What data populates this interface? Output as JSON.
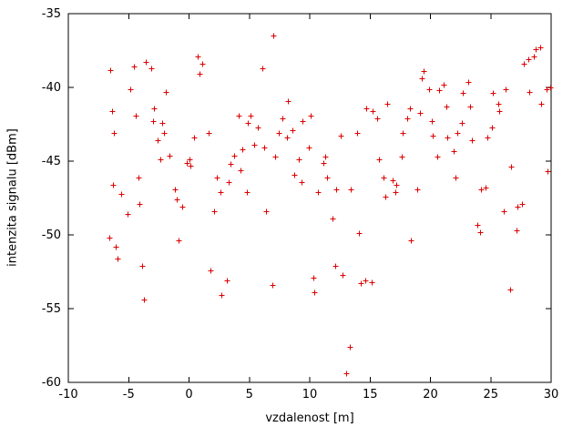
{
  "chart_data": {
    "type": "scatter",
    "title": "",
    "xlabel": "vzdalenost [m]",
    "ylabel": "intenzita signalu [dBm]",
    "xlim": [
      -10,
      30
    ],
    "ylim": [
      -60,
      -35
    ],
    "xticks": [
      -10,
      -5,
      0,
      5,
      10,
      15,
      20,
      25,
      30
    ],
    "yticks": [
      -60,
      -55,
      -50,
      -45,
      -40,
      -35
    ],
    "grid": false,
    "legend": "none",
    "marker": "plus",
    "marker_color": "#dd0000",
    "border_color": "#000000",
    "points": [
      [
        -6.6,
        -50.2
      ],
      [
        -6.5,
        -38.8
      ],
      [
        -6.4,
        -41.6
      ],
      [
        -6.2,
        -43.1
      ],
      [
        -6.3,
        -46.6
      ],
      [
        -6.1,
        -50.8
      ],
      [
        -5.9,
        -51.6
      ],
      [
        -5.6,
        -47.2
      ],
      [
        -5.1,
        -48.6
      ],
      [
        -4.9,
        -40.1
      ],
      [
        -4.6,
        -38.6
      ],
      [
        -4.4,
        -41.9
      ],
      [
        -4.2,
        -46.1
      ],
      [
        -4.1,
        -47.9
      ],
      [
        -3.9,
        -52.1
      ],
      [
        -3.7,
        -54.4
      ],
      [
        -3.6,
        -38.3
      ],
      [
        -3.1,
        -38.7
      ],
      [
        -3.0,
        -42.3
      ],
      [
        -2.9,
        -41.4
      ],
      [
        -2.6,
        -43.6
      ],
      [
        -2.4,
        -44.9
      ],
      [
        -2.2,
        -42.4
      ],
      [
        -2.1,
        -43.1
      ],
      [
        -1.9,
        -40.3
      ],
      [
        -1.6,
        -44.6
      ],
      [
        -1.2,
        -46.9
      ],
      [
        -1.0,
        -47.6
      ],
      [
        -0.9,
        -50.4
      ],
      [
        -0.6,
        -48.1
      ],
      [
        -0.2,
        -45.1
      ],
      [
        0.0,
        -44.9
      ],
      [
        0.1,
        -45.3
      ],
      [
        0.4,
        -43.4
      ],
      [
        0.7,
        -37.9
      ],
      [
        0.9,
        -39.1
      ],
      [
        1.1,
        -38.4
      ],
      [
        1.6,
        -43.1
      ],
      [
        1.8,
        -52.4
      ],
      [
        2.1,
        -48.4
      ],
      [
        2.3,
        -46.1
      ],
      [
        2.6,
        -47.1
      ],
      [
        2.7,
        -54.1
      ],
      [
        3.1,
        -53.1
      ],
      [
        3.3,
        -46.4
      ],
      [
        3.4,
        -45.2
      ],
      [
        3.7,
        -44.6
      ],
      [
        4.1,
        -41.9
      ],
      [
        4.3,
        -45.6
      ],
      [
        4.4,
        -44.2
      ],
      [
        4.8,
        -47.1
      ],
      [
        4.9,
        -42.4
      ],
      [
        5.1,
        -41.9
      ],
      [
        5.4,
        -43.9
      ],
      [
        5.7,
        -42.7
      ],
      [
        6.1,
        -38.7
      ],
      [
        6.2,
        -44.1
      ],
      [
        6.4,
        -48.4
      ],
      [
        6.9,
        -53.4
      ],
      [
        7.0,
        -36.5
      ],
      [
        7.1,
        -44.7
      ],
      [
        7.4,
        -43.1
      ],
      [
        7.7,
        -42.1
      ],
      [
        8.1,
        -43.4
      ],
      [
        8.2,
        -40.9
      ],
      [
        8.6,
        -42.9
      ],
      [
        8.7,
        -45.9
      ],
      [
        9.1,
        -44.9
      ],
      [
        9.3,
        -46.4
      ],
      [
        9.4,
        -42.3
      ],
      [
        9.9,
        -44.1
      ],
      [
        10.1,
        -41.9
      ],
      [
        10.3,
        -52.9
      ],
      [
        10.4,
        -53.9
      ],
      [
        10.7,
        -47.1
      ],
      [
        11.1,
        -45.1
      ],
      [
        11.3,
        -44.7
      ],
      [
        11.4,
        -46.1
      ],
      [
        11.9,
        -48.9
      ],
      [
        12.1,
        -52.1
      ],
      [
        12.2,
        -46.9
      ],
      [
        12.6,
        -43.3
      ],
      [
        12.7,
        -52.7
      ],
      [
        13.0,
        -59.4
      ],
      [
        13.3,
        -57.6
      ],
      [
        13.4,
        -46.9
      ],
      [
        13.9,
        -43.1
      ],
      [
        14.1,
        -49.9
      ],
      [
        14.2,
        -53.3
      ],
      [
        14.6,
        -53.1
      ],
      [
        14.7,
        -41.4
      ],
      [
        15.1,
        -53.2
      ],
      [
        15.2,
        -41.6
      ],
      [
        15.6,
        -42.1
      ],
      [
        15.7,
        -44.9
      ],
      [
        16.1,
        -46.1
      ],
      [
        16.3,
        -47.4
      ],
      [
        16.4,
        -41.1
      ],
      [
        16.9,
        -46.3
      ],
      [
        17.1,
        -47.1
      ],
      [
        17.2,
        -46.6
      ],
      [
        17.6,
        -44.7
      ],
      [
        17.7,
        -43.1
      ],
      [
        18.1,
        -42.1
      ],
      [
        18.3,
        -41.4
      ],
      [
        18.4,
        -50.4
      ],
      [
        18.9,
        -46.9
      ],
      [
        19.1,
        -41.7
      ],
      [
        19.3,
        -39.4
      ],
      [
        19.4,
        -38.9
      ],
      [
        19.9,
        -40.1
      ],
      [
        20.1,
        -42.3
      ],
      [
        20.2,
        -43.3
      ],
      [
        20.6,
        -44.7
      ],
      [
        20.7,
        -40.2
      ],
      [
        21.1,
        -39.8
      ],
      [
        21.3,
        -41.3
      ],
      [
        21.4,
        -43.4
      ],
      [
        21.9,
        -44.3
      ],
      [
        22.1,
        -46.1
      ],
      [
        22.2,
        -43.1
      ],
      [
        22.6,
        -42.4
      ],
      [
        22.7,
        -40.4
      ],
      [
        23.1,
        -39.6
      ],
      [
        23.3,
        -41.3
      ],
      [
        23.4,
        -43.6
      ],
      [
        23.9,
        -49.3
      ],
      [
        24.1,
        -49.8
      ],
      [
        24.2,
        -46.9
      ],
      [
        24.6,
        -46.8
      ],
      [
        24.7,
        -43.4
      ],
      [
        25.1,
        -42.7
      ],
      [
        25.2,
        -40.4
      ],
      [
        25.6,
        -41.1
      ],
      [
        25.7,
        -41.6
      ],
      [
        26.1,
        -48.4
      ],
      [
        26.2,
        -40.1
      ],
      [
        26.6,
        -53.7
      ],
      [
        26.7,
        -45.4
      ],
      [
        27.1,
        -49.7
      ],
      [
        27.2,
        -48.1
      ],
      [
        27.6,
        -47.9
      ],
      [
        27.7,
        -38.4
      ],
      [
        28.1,
        -38.1
      ],
      [
        28.2,
        -40.3
      ],
      [
        28.6,
        -37.9
      ],
      [
        28.7,
        -37.4
      ],
      [
        29.1,
        -37.3
      ],
      [
        29.2,
        -41.1
      ],
      [
        29.6,
        -40.1
      ],
      [
        29.7,
        -45.7
      ],
      [
        29.9,
        -40.0
      ]
    ]
  }
}
